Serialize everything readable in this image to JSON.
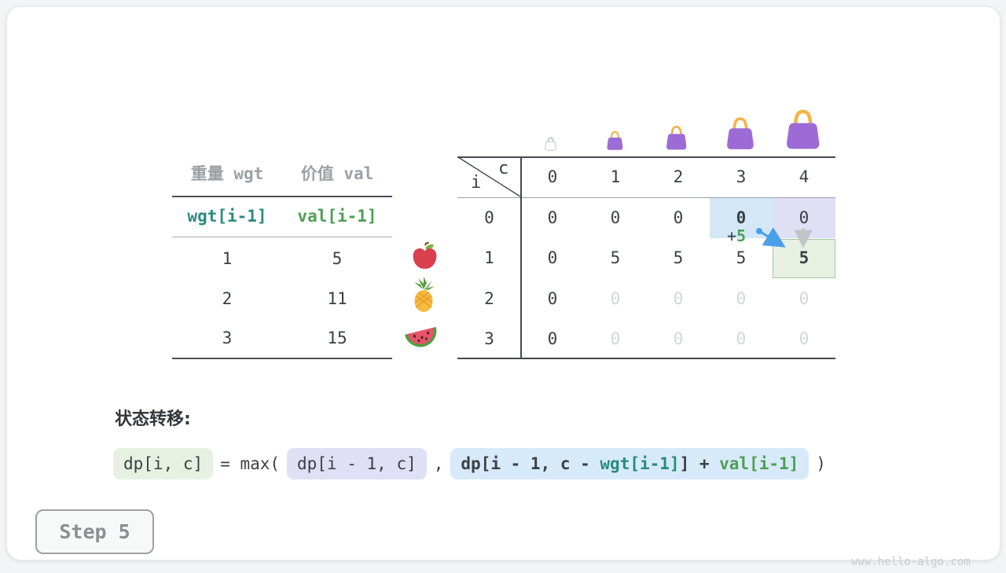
{
  "canvas": {
    "watermark": "www.hello-algo.com"
  },
  "step_button": {
    "label": "Step 5"
  },
  "items_table": {
    "headers": [
      "重量 wgt",
      "价值 val"
    ],
    "subheaders": [
      "wgt[i-1]",
      "val[i-1]"
    ],
    "rows": [
      {
        "wgt": "1",
        "val": "5",
        "item": "apple"
      },
      {
        "wgt": "2",
        "val": "11",
        "item": "pineapple"
      },
      {
        "wgt": "3",
        "val": "15",
        "item": "watermelon"
      }
    ]
  },
  "dp_table": {
    "corner": {
      "row_axis": "i",
      "col_axis": "c"
    },
    "col_headers": [
      "0",
      "1",
      "2",
      "3",
      "4"
    ],
    "row_headers": [
      "0",
      "1",
      "2",
      "3"
    ],
    "bags": [
      "empty-bag",
      "bag-capacity-1",
      "bag-capacity-2",
      "bag-capacity-3",
      "bag-capacity-4"
    ],
    "rows": [
      [
        {
          "v": "0"
        },
        {
          "v": "0"
        },
        {
          "v": "0"
        },
        {
          "v": "0",
          "bold": true,
          "hl": "blue"
        },
        {
          "v": "0",
          "hl": "lavender"
        }
      ],
      [
        {
          "v": "0"
        },
        {
          "v": "5"
        },
        {
          "v": "5"
        },
        {
          "v": "5"
        },
        {
          "v": "5",
          "bold": true,
          "hl": "green"
        }
      ],
      [
        {
          "v": "0"
        },
        {
          "v": "0",
          "faded": true
        },
        {
          "v": "0",
          "faded": true
        },
        {
          "v": "0",
          "faded": true
        },
        {
          "v": "0",
          "faded": true
        }
      ],
      [
        {
          "v": "0"
        },
        {
          "v": "0",
          "faded": true
        },
        {
          "v": "0",
          "faded": true
        },
        {
          "v": "0",
          "faded": true
        },
        {
          "v": "0",
          "faded": true
        }
      ]
    ],
    "annotation": {
      "plus": "+",
      "value": "5"
    }
  },
  "formula": {
    "label": "状态转移:",
    "lhs": "dp[i, c]",
    "op": "= max(",
    "arg1": "dp[i - 1, c]",
    "comma": ",",
    "arg2_pre": "dp[i - 1, c - ",
    "arg2_wgt": "wgt[i-1]",
    "arg2_mid": "] + ",
    "arg2_val": "val[i-1]",
    "close": ")"
  },
  "colors": {
    "teal": "#2b8a80",
    "green": "#4f9e53",
    "blue_highlight": "#d3e7f7",
    "lavender_highlight": "#dfe0f5",
    "green_highlight": "#e7f1e2",
    "green_border": "#a3c79f",
    "blue_pill": "#d7eafa",
    "arrow_blue": "#4aa0e8",
    "arrow_gray": "#c2c4c6",
    "bag_purple": "#9d6bd6",
    "bag_handle": "#f2b54e"
  }
}
